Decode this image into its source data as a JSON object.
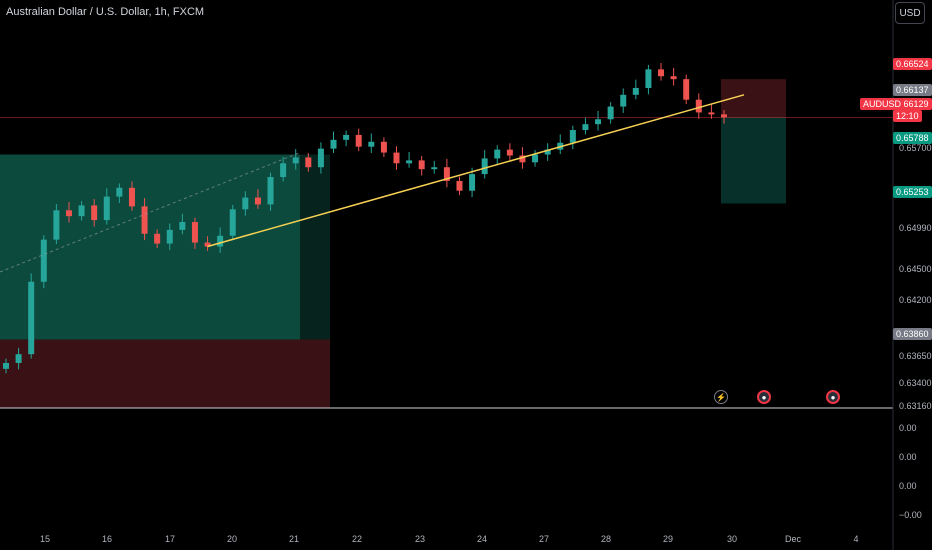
{
  "title": "Australian Dollar / U.S. Dollar, 1h, FXCM",
  "currency_button": "USD",
  "symbol": "AUDUSD",
  "colors": {
    "up": "#26a69a",
    "down": "#ef5350",
    "trendline": "#f7d154",
    "profit_zone": "#0b4a3d",
    "loss_zone": "#3a1114"
  },
  "price_labels": {
    "high_target": "0.66524",
    "last": "0.66137",
    "current": "0.66129",
    "countdown": "12:10",
    "take_profit": "0.65253",
    "entry": "0.65788",
    "lower_marker": "0.63860"
  },
  "y_ticks": [
    "0.65700",
    "0.64990",
    "0.64500",
    "0.64200",
    "0.63650",
    "0.63400",
    "0.63160"
  ],
  "indicator_ticks": [
    "0.00",
    "0.00",
    "0.00",
    "−0.00"
  ],
  "x_ticks": [
    "15",
    "16",
    "17",
    "20",
    "21",
    "22",
    "23",
    "24",
    "27",
    "28",
    "29",
    "30",
    "Dec",
    "4"
  ],
  "events": [
    {
      "icon": "lightning-icon",
      "label": "⚡"
    },
    {
      "icon": "flag-icon",
      "label": "●"
    },
    {
      "icon": "flag-icon",
      "label": "●"
    }
  ],
  "chart_data": {
    "type": "candlestick",
    "symbol": "AUDUSD",
    "interval": "1h",
    "source": "FXCM",
    "x_labels": [
      "15",
      "16",
      "17",
      "20",
      "21",
      "22",
      "23",
      "24",
      "27",
      "28",
      "29",
      "30",
      "Dec",
      "4"
    ],
    "price_range": [
      0.6316,
      0.6692
    ],
    "closes": [
      0.6362,
      0.6371,
      0.6445,
      0.6488,
      0.6518,
      0.6512,
      0.6523,
      0.6508,
      0.6532,
      0.6541,
      0.6522,
      0.6494,
      0.6484,
      0.6498,
      0.6506,
      0.6485,
      0.6481,
      0.6492,
      0.6519,
      0.6531,
      0.6524,
      0.6552,
      0.6566,
      0.6572,
      0.6562,
      0.6581,
      0.659,
      0.6595,
      0.6583,
      0.6588,
      0.6577,
      0.6566,
      0.6569,
      0.656,
      0.6562,
      0.6548,
      0.6538,
      0.6555,
      0.6571,
      0.658,
      0.6574,
      0.6567,
      0.6575,
      0.658,
      0.6587,
      0.66,
      0.6606,
      0.6611,
      0.6624,
      0.6636,
      0.6643,
      0.6662,
      0.6655,
      0.6652,
      0.6631,
      0.6618,
      0.6616,
      0.6613
    ],
    "trendlines": [
      {
        "name": "support",
        "from": 0.6481,
        "to": 0.663
      }
    ],
    "positions": [
      {
        "type": "long",
        "entry": 0.6386,
        "stop": 0.6316,
        "target": 0.6575
      },
      {
        "type": "short",
        "entry": 0.6613,
        "stop": 0.6652,
        "target": 0.6525
      }
    ]
  }
}
